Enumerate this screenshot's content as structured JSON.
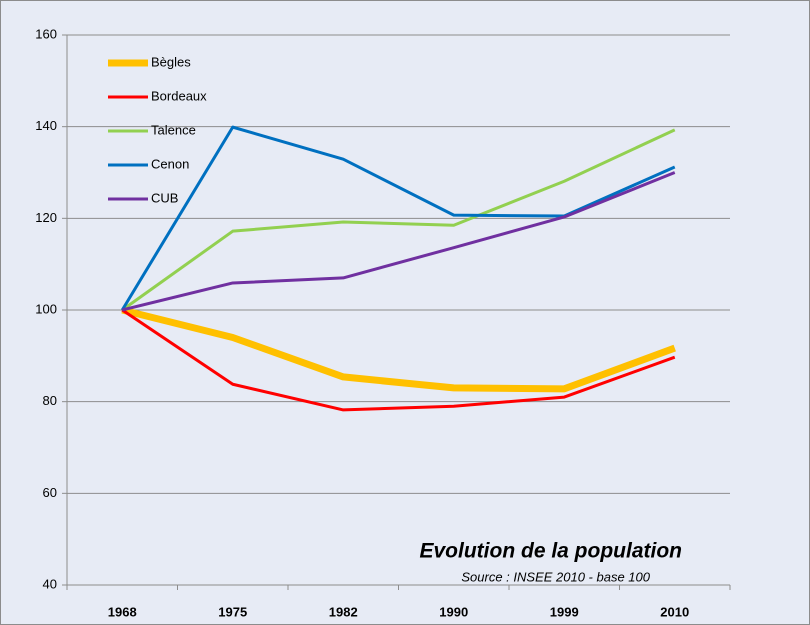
{
  "chart_data": {
    "type": "line",
    "title": "Evolution de la population",
    "subtitle": "Source : INSEE 2010  - base 100",
    "categories": [
      "1968",
      "1975",
      "1982",
      "1990",
      "1999",
      "2010"
    ],
    "series": [
      {
        "name": "Bègles",
        "color": "#ffc000",
        "width": 7,
        "values": [
          100,
          94,
          85.4,
          83,
          82.8,
          91.7
        ]
      },
      {
        "name": "Bordeaux",
        "color": "#ff0000",
        "width": 3,
        "values": [
          100,
          83.8,
          78.2,
          79,
          81,
          89.7
        ]
      },
      {
        "name": "Talence",
        "color": "#92d050",
        "width": 3,
        "values": [
          100,
          117.2,
          119.2,
          118.5,
          128.1,
          139.3
        ]
      },
      {
        "name": "Cenon",
        "color": "#0070c0",
        "width": 3,
        "values": [
          100,
          139.9,
          132.9,
          120.7,
          120.5,
          131.2
        ]
      },
      {
        "name": "CUB",
        "color": "#7030a0",
        "width": 3,
        "values": [
          100,
          105.9,
          107,
          113.6,
          120.3,
          130
        ]
      }
    ],
    "ylim": [
      40,
      160
    ],
    "yticks": [
      40,
      60,
      80,
      100,
      120,
      140,
      160
    ],
    "grid": true,
    "legend": "upper left"
  }
}
